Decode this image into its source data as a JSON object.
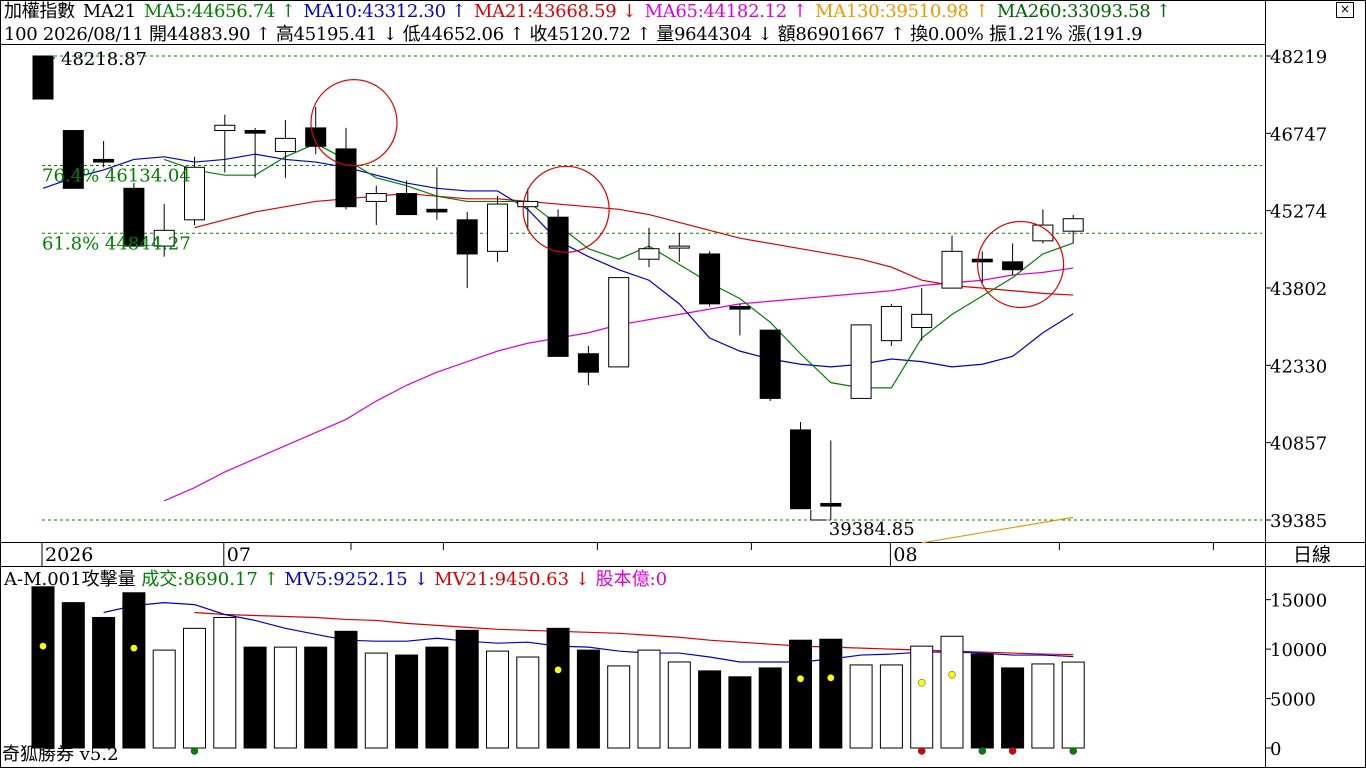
{
  "header": {
    "line1": [
      {
        "text": "加權指數",
        "color": "#000000"
      },
      {
        "text": "MA21",
        "color": "#000000"
      },
      {
        "text": "MA5:44656.74 ↑",
        "color": "#008000"
      },
      {
        "text": "MA10:43312.30 ↑",
        "color": "#0000cc"
      },
      {
        "text": "MA21:43668.59 ↓",
        "color": "#dd0000"
      },
      {
        "text": "MA65:44182.12 ↑",
        "color": "#dd00dd"
      },
      {
        "text": "MA130:39510.98 ↑",
        "color": "#ee9900"
      },
      {
        "text": "MA260:33093.58 ↑",
        "color": "#006400"
      }
    ],
    "line2": "100 2026/08/11 開44883.90 ↑ 高45195.41 ↓ 低44652.06 ↑ 收45120.72 ↑ 量9644304 ↓ 額86901667 ↑ 換0.00% 振1.21% 漲(191.9"
  },
  "price_axis": {
    "ticks": [
      "48219",
      "46747",
      "45274",
      "43802",
      "42330",
      "40857",
      "39385"
    ],
    "period_label": "日線"
  },
  "date_axis": {
    "labels": [
      "2026",
      "07",
      "08"
    ]
  },
  "annotations": {
    "high_label": "48218.87",
    "low_label": "39384.85",
    "fib1": "76.4% 46134.04",
    "fib2": "61.8% 44844.27"
  },
  "volume_panel": {
    "legend": [
      {
        "text": "A-M.001攻擊量",
        "color": "#000000"
      },
      {
        "text": "成交:8690.17 ↑",
        "color": "#008000"
      },
      {
        "text": "MV5:9252.15 ↓",
        "color": "#0000cc"
      },
      {
        "text": "MV21:9450.63 ↓",
        "color": "#dd0000"
      },
      {
        "text": "股本億:0",
        "color": "#dd00dd"
      }
    ],
    "ticks": [
      "15000",
      "10000",
      "5000",
      "0"
    ],
    "footer": "奇狐勝券 v5.2"
  },
  "colors": {
    "up": "#ffffff",
    "down": "#000000",
    "ma5": "#008000",
    "ma10": "#0000cc",
    "ma21": "#dd0000",
    "ma65": "#dd00dd",
    "ma130": "#ee9900",
    "grid": "#008000",
    "circle": "#e00000"
  },
  "chart_data": {
    "type": "candlestick",
    "price_range": [
      39385,
      48219
    ],
    "volume_range": [
      0,
      18000
    ],
    "candles": [
      {
        "o": 48219,
        "h": 48219,
        "l": 47400,
        "c": 47400,
        "v": 16300
      },
      {
        "o": 46800,
        "h": 46800,
        "l": 45700,
        "c": 45700,
        "v": 14700
      },
      {
        "o": 46250,
        "h": 46600,
        "l": 46100,
        "c": 46200,
        "v": 13200
      },
      {
        "o": 45700,
        "h": 45800,
        "l": 44600,
        "c": 44600,
        "v": 15700
      },
      {
        "o": 44600,
        "h": 45400,
        "l": 44400,
        "c": 44900,
        "v": 9900
      },
      {
        "o": 45100,
        "h": 46300,
        "l": 45000,
        "c": 46100,
        "v": 12100
      },
      {
        "o": 46800,
        "h": 47100,
        "l": 46000,
        "c": 46900,
        "v": 13200
      },
      {
        "o": 46800,
        "h": 46850,
        "l": 45900,
        "c": 46750,
        "v": 10200
      },
      {
        "o": 46400,
        "h": 47000,
        "l": 45900,
        "c": 46650,
        "v": 10200
      },
      {
        "o": 46850,
        "h": 47250,
        "l": 46350,
        "c": 46500,
        "v": 10200
      },
      {
        "o": 46450,
        "h": 46850,
        "l": 45300,
        "c": 45350,
        "v": 11800
      },
      {
        "o": 45450,
        "h": 45750,
        "l": 45000,
        "c": 45600,
        "v": 9600
      },
      {
        "o": 45600,
        "h": 45850,
        "l": 45200,
        "c": 45200,
        "v": 9400
      },
      {
        "o": 45300,
        "h": 46100,
        "l": 45100,
        "c": 45250,
        "v": 10200
      },
      {
        "o": 45100,
        "h": 45250,
        "l": 43800,
        "c": 44450,
        "v": 11900
      },
      {
        "o": 44500,
        "h": 45550,
        "l": 44300,
        "c": 45400,
        "v": 9800
      },
      {
        "o": 45350,
        "h": 45700,
        "l": 44900,
        "c": 45450,
        "v": 9200
      },
      {
        "o": 45150,
        "h": 45300,
        "l": 42500,
        "c": 42500,
        "v": 12100
      },
      {
        "o": 42550,
        "h": 42700,
        "l": 41950,
        "c": 42200,
        "v": 9900
      },
      {
        "o": 42300,
        "h": 44000,
        "l": 42300,
        "c": 44000,
        "v": 8300
      },
      {
        "o": 44350,
        "h": 44950,
        "l": 44200,
        "c": 44550,
        "v": 9900
      },
      {
        "o": 44600,
        "h": 44850,
        "l": 44300,
        "c": 44600,
        "v": 8700
      },
      {
        "o": 44450,
        "h": 44500,
        "l": 43450,
        "c": 43500,
        "v": 7800
      },
      {
        "o": 43450,
        "h": 43500,
        "l": 42900,
        "c": 43400,
        "v": 7200
      },
      {
        "o": 43000,
        "h": 43000,
        "l": 41650,
        "c": 41700,
        "v": 8100
      },
      {
        "o": 41100,
        "h": 41250,
        "l": 39600,
        "c": 39600,
        "v": 10900
      },
      {
        "o": 39700,
        "h": 40900,
        "l": 39385,
        "c": 39650,
        "v": 11000
      },
      {
        "o": 41700,
        "h": 43100,
        "l": 41700,
        "c": 43100,
        "v": 8400
      },
      {
        "o": 42800,
        "h": 43500,
        "l": 42700,
        "c": 43450,
        "v": 8400
      },
      {
        "o": 43050,
        "h": 43800,
        "l": 42800,
        "c": 43300,
        "v": 10300
      },
      {
        "o": 43800,
        "h": 44800,
        "l": 43800,
        "c": 44500,
        "v": 11300
      },
      {
        "o": 44350,
        "h": 44500,
        "l": 43900,
        "c": 44300,
        "v": 9500
      },
      {
        "o": 44300,
        "h": 44650,
        "l": 44050,
        "c": 44150,
        "v": 8100
      },
      {
        "o": 44700,
        "h": 45300,
        "l": 44650,
        "c": 45000,
        "v": 8500
      },
      {
        "o": 44884,
        "h": 45195,
        "l": 44652,
        "c": 45121,
        "v": 8690
      }
    ],
    "ma5": [
      null,
      null,
      null,
      null,
      46250,
      46050,
      45950,
      45950,
      46300,
      46550,
      46250,
      45900,
      45750,
      45550,
      45450,
      45450,
      45450,
      45000,
      44550,
      44350,
      44600,
      44250,
      43900,
      43600,
      43150,
      42550,
      42000,
      41900,
      41900,
      42850,
      43300,
      43650,
      44000,
      44450,
      44657
    ],
    "ma10": [
      45700,
      45900,
      46050,
      46250,
      46300,
      46200,
      46250,
      46350,
      46250,
      46200,
      46100,
      45950,
      45800,
      45700,
      45650,
      45650,
      45300,
      44700,
      44400,
      44150,
      43950,
      43500,
      42850,
      42600,
      42450,
      42350,
      42300,
      42350,
      42450,
      42400,
      42300,
      42350,
      42500,
      42950,
      43312
    ],
    "ma21": [
      44950,
      45100,
      45250,
      45350,
      45450,
      45500,
      45550,
      45600,
      45550,
      45500,
      45500,
      45450,
      45400,
      45350,
      45300,
      45200,
      45050,
      44900,
      44750,
      44650,
      44550,
      44450,
      44350,
      44200,
      43950,
      43850,
      43800,
      43750,
      43700,
      43668
    ],
    "ma65": [
      39750,
      40000,
      40300,
      40550,
      40800,
      41050,
      41300,
      41650,
      41950,
      42200,
      42400,
      42600,
      42750,
      42850,
      42950,
      43100,
      43200,
      43300,
      43400,
      43500,
      43550,
      43600,
      43650,
      43700,
      43750,
      43850,
      43900,
      43950,
      44050,
      44100,
      44182
    ],
    "ma130": [
      39350,
      39510.98
    ],
    "mv5": [
      13700,
      14400,
      14700,
      14500,
      13500,
      12900,
      12100,
      11500,
      10900,
      10800,
      10800,
      11100,
      10800,
      10600,
      10700,
      10300,
      10200,
      9800,
      9600,
      9600,
      9200,
      8700,
      8700,
      8700,
      9000,
      9400,
      9500,
      9700,
      9700,
      9600,
      9400,
      9400,
      9252
    ],
    "mv21": [
      13700,
      13500,
      13400,
      13300,
      13200,
      13000,
      12900,
      12600,
      12400,
      12200,
      12000,
      11900,
      11800,
      11700,
      11600,
      11400,
      11200,
      10900,
      10700,
      10500,
      10300,
      10200,
      10100,
      10000,
      9900,
      9800,
      9700,
      9600,
      9500,
      9450
    ],
    "signal_dots": [
      {
        "i": 0,
        "color": "#ffff00",
        "y": 10300
      },
      {
        "i": 3,
        "color": "#ffff00",
        "y": 10100
      },
      {
        "i": 5,
        "color": "#008000",
        "y": 0
      },
      {
        "i": 17,
        "color": "#ffff00",
        "y": 7900
      },
      {
        "i": 25,
        "color": "#ffff00",
        "y": 7000
      },
      {
        "i": 26,
        "color": "#ffff00",
        "y": 7100
      },
      {
        "i": 29,
        "color": "#ffff00",
        "y": 6600
      },
      {
        "i": 29,
        "color": "#dd0000",
        "y": 0
      },
      {
        "i": 30,
        "color": "#ffff00",
        "y": 7400
      },
      {
        "i": 31,
        "color": "#008000",
        "y": 0
      },
      {
        "i": 32,
        "color": "#dd0000",
        "y": 0
      },
      {
        "i": 34,
        "color": "#008000",
        "y": 0
      }
    ]
  }
}
